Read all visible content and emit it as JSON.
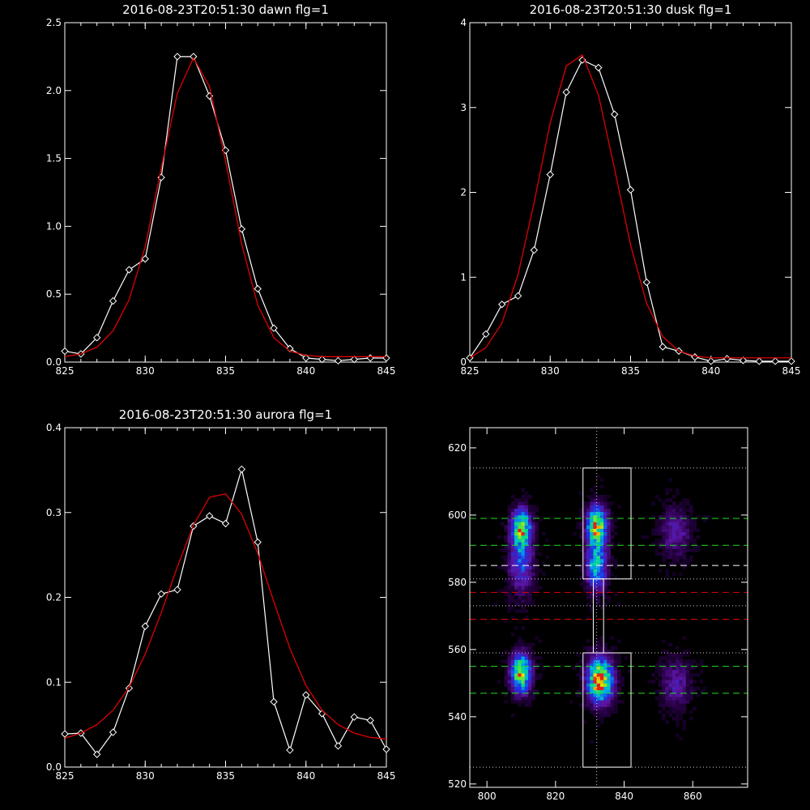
{
  "chart_data": [
    {
      "type": "line",
      "title": "2016-08-23T20:51:30 dawn flg=1",
      "xlim": [
        825,
        845
      ],
      "ylim": [
        0,
        2.5
      ],
      "xticks": [
        "825",
        "830",
        "835",
        "840",
        "845"
      ],
      "yticks": [
        "0.0",
        "0.5",
        "1.0",
        "1.5",
        "2.0",
        "2.5"
      ],
      "series": [
        {
          "style": "white-diamonds",
          "x": [
            825,
            826,
            827,
            828,
            829,
            830,
            831,
            832,
            833,
            834,
            835,
            836,
            837,
            838,
            839,
            840,
            841,
            842,
            843,
            844,
            845
          ],
          "y": [
            0.08,
            0.06,
            0.18,
            0.45,
            0.68,
            0.76,
            1.36,
            2.25,
            2.25,
            1.96,
            1.56,
            0.98,
            0.54,
            0.25,
            0.1,
            0.03,
            0.02,
            0.01,
            0.02,
            0.03,
            0.03
          ]
        },
        {
          "style": "red-fit",
          "x": [
            825,
            826,
            827,
            828,
            829,
            830,
            831,
            832,
            833,
            834,
            835,
            836,
            837,
            838,
            839,
            840,
            841,
            842,
            843,
            844,
            845
          ],
          "y": [
            0.04,
            0.06,
            0.11,
            0.23,
            0.46,
            0.85,
            1.43,
            1.98,
            2.24,
            2.03,
            1.48,
            0.87,
            0.42,
            0.18,
            0.08,
            0.05,
            0.04,
            0.04,
            0.04,
            0.04,
            0.04
          ]
        }
      ]
    },
    {
      "type": "line",
      "title": "2016-08-23T20:51:30 dusk flg=1",
      "xlim": [
        825,
        845
      ],
      "ylim": [
        0,
        4
      ],
      "xticks": [
        "825",
        "830",
        "835",
        "840",
        "845"
      ],
      "yticks": [
        "0",
        "1",
        "2",
        "3",
        "4"
      ],
      "series": [
        {
          "style": "white-diamonds",
          "x": [
            825,
            826,
            827,
            828,
            829,
            830,
            831,
            832,
            833,
            834,
            835,
            836,
            837,
            838,
            839,
            840,
            841,
            842,
            843,
            844,
            845
          ],
          "y": [
            0.05,
            0.33,
            0.68,
            0.78,
            1.32,
            2.21,
            3.18,
            3.56,
            3.47,
            2.92,
            2.03,
            0.94,
            0.18,
            0.13,
            0.06,
            0.01,
            0.04,
            0.02,
            0.01,
            0.01,
            0.01
          ]
        },
        {
          "style": "red-fit",
          "x": [
            825,
            826,
            827,
            828,
            829,
            830,
            831,
            832,
            833,
            834,
            835,
            836,
            837,
            838,
            839,
            840,
            841,
            842,
            843,
            844,
            845
          ],
          "y": [
            0.05,
            0.17,
            0.46,
            1.03,
            1.88,
            2.82,
            3.49,
            3.62,
            3.15,
            2.28,
            1.38,
            0.69,
            0.3,
            0.13,
            0.07,
            0.05,
            0.05,
            0.05,
            0.05,
            0.05,
            0.05
          ]
        }
      ]
    },
    {
      "type": "line",
      "title": "2016-08-23T20:51:30 aurora flg=1",
      "xlim": [
        825,
        845
      ],
      "ylim": [
        0,
        0.4
      ],
      "xticks": [
        "825",
        "830",
        "835",
        "840",
        "845"
      ],
      "yticks": [
        "0.0",
        "0.1",
        "0.2",
        "0.3",
        "0.4"
      ],
      "series": [
        {
          "style": "white-diamonds",
          "x": [
            825,
            826,
            827,
            828,
            829,
            830,
            831,
            832,
            833,
            834,
            835,
            836,
            837,
            838,
            839,
            840,
            841,
            842,
            843,
            844,
            845
          ],
          "y": [
            0.039,
            0.04,
            0.015,
            0.041,
            0.093,
            0.166,
            0.204,
            0.209,
            0.284,
            0.296,
            0.287,
            0.351,
            0.265,
            0.077,
            0.02,
            0.085,
            0.063,
            0.025,
            0.059,
            0.055,
            0.021
          ]
        },
        {
          "style": "red-fit",
          "x": [
            825,
            826,
            827,
            828,
            829,
            830,
            831,
            832,
            833,
            834,
            835,
            836,
            837,
            838,
            839,
            840,
            841,
            842,
            843,
            844,
            845
          ],
          "y": [
            0.034,
            0.04,
            0.05,
            0.067,
            0.094,
            0.133,
            0.182,
            0.236,
            0.285,
            0.318,
            0.322,
            0.298,
            0.252,
            0.195,
            0.14,
            0.096,
            0.067,
            0.05,
            0.04,
            0.035,
            0.033
          ]
        }
      ]
    },
    {
      "type": "heatmap",
      "title": "",
      "xlim": [
        795,
        876
      ],
      "ylim": [
        519,
        626
      ],
      "xticks": [
        "800",
        "820",
        "840",
        "860"
      ],
      "yticks": [
        "520",
        "540",
        "560",
        "580",
        "600",
        "620"
      ],
      "hotspots": [
        {
          "x": 810,
          "y": 553,
          "sx": 2.0,
          "sy": 4.0,
          "amp": 0.85
        },
        {
          "x": 810,
          "y": 596,
          "sx": 2.0,
          "sy": 4.0,
          "amp": 0.75
        },
        {
          "x": 810,
          "y": 585,
          "sx": 2.5,
          "sy": 6.0,
          "amp": 0.35
        },
        {
          "x": 833,
          "y": 551,
          "sx": 2.5,
          "sy": 4.5,
          "amp": 1.0
        },
        {
          "x": 832,
          "y": 597,
          "sx": 2.0,
          "sy": 4.0,
          "amp": 0.85
        },
        {
          "x": 832,
          "y": 585,
          "sx": 2.0,
          "sy": 5.0,
          "amp": 0.6
        },
        {
          "x": 855,
          "y": 550,
          "sx": 3.0,
          "sy": 5.0,
          "amp": 0.25
        },
        {
          "x": 855,
          "y": 595,
          "sx": 3.0,
          "sy": 5.0,
          "amp": 0.25
        }
      ],
      "overlays": {
        "green_dashed_y": [
          599,
          591,
          555,
          547
        ],
        "white_dashed_y": [
          585
        ],
        "red_dashed_y": [
          577,
          569
        ],
        "dotted_y": [
          614,
          581,
          573,
          559,
          525
        ],
        "dotted_x": [
          832
        ],
        "boxes": [
          {
            "x0": 828,
            "x1": 842,
            "y0": 581,
            "y1": 614
          },
          {
            "x0": 828,
            "x1": 842,
            "y0": 525,
            "y1": 559
          },
          {
            "x0": 831,
            "x1": 834,
            "y0": 559,
            "y1": 581
          }
        ]
      }
    }
  ]
}
